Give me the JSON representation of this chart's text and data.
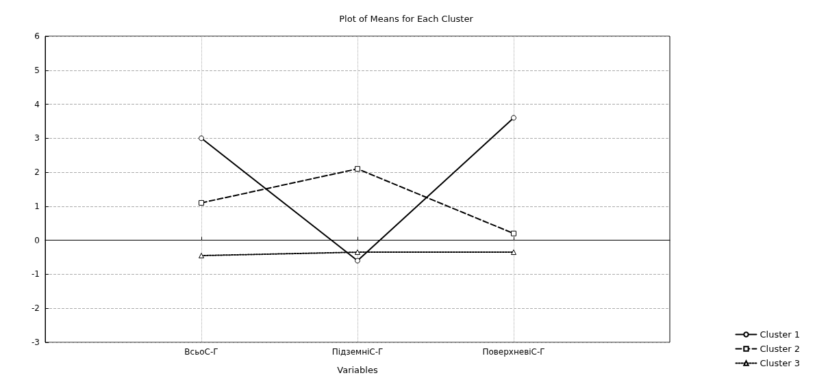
{
  "chart_data": {
    "type": "line",
    "title": "Plot of Means for Each Cluster",
    "xlabel": "Variables",
    "categories": [
      null,
      "ВсьоС-Г",
      "ПідземніС-Г",
      "ПоверхневіС-Г",
      null
    ],
    "series": [
      {
        "name": "Cluster 1",
        "color": "#000000",
        "marker": "circle",
        "line_style": "solid",
        "values": [
          null,
          3.0,
          -0.6,
          3.6,
          null
        ]
      },
      {
        "name": "Cluster 2",
        "color": "#000000",
        "marker": "square",
        "line_style": "dashed",
        "values": [
          null,
          1.1,
          2.1,
          0.2,
          null
        ]
      },
      {
        "name": "Cluster 3",
        "color": "#000000",
        "marker": "triangle",
        "line_style": "dotted",
        "values": [
          null,
          -0.45,
          -0.35,
          -0.35,
          null
        ]
      }
    ],
    "ylim": [
      -3,
      6
    ],
    "yticks": [
      -3,
      -2,
      -1,
      0,
      1,
      2,
      3,
      4,
      5,
      6
    ],
    "grid": true,
    "legend": "bottom right"
  }
}
